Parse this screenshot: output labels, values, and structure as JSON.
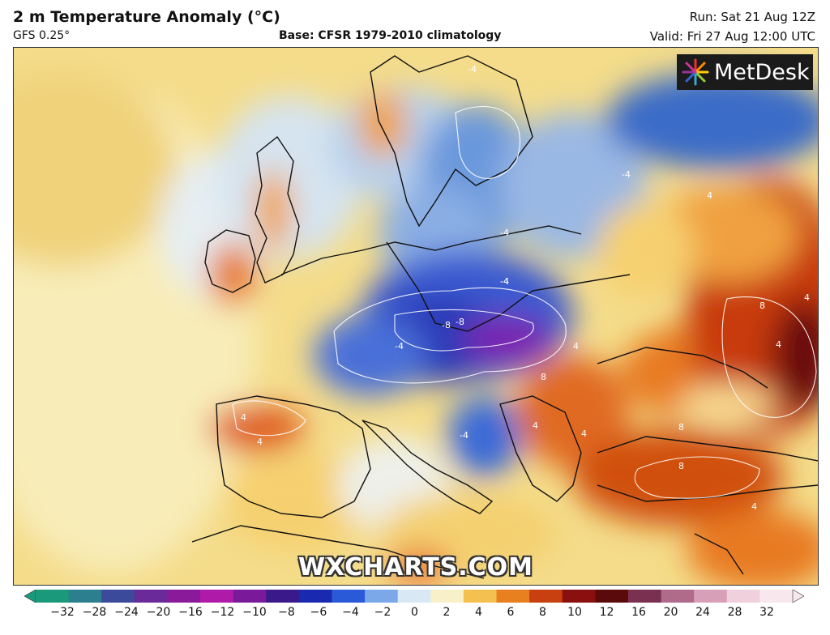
{
  "header": {
    "title": "2 m Temperature Anomaly (°C)",
    "model": "GFS 0.25°",
    "base": "Base: CFSR 1979-2010 climatology",
    "run": "Run: Sat 21 Aug 12Z",
    "valid": "Valid: Fri 27 Aug 12:00 UTC"
  },
  "logo": {
    "text": "MetDesk",
    "icon": "metdesk-starburst-icon"
  },
  "watermark": "WXCHARTS.COM",
  "contour_labels": {
    "cold": "-4",
    "cold_strong": "-8",
    "warm": "4",
    "warm_strong": "8"
  },
  "colorbar": {
    "ticks": [
      "−32",
      "−28",
      "−24",
      "−20",
      "−16",
      "−12",
      "−10",
      "−8",
      "−6",
      "−4",
      "−2",
      "0",
      "2",
      "4",
      "6",
      "8",
      "10",
      "12",
      "16",
      "20",
      "24",
      "28",
      "32"
    ],
    "colors": [
      "#1a9a7a",
      "#2b7f8f",
      "#3b4a9a",
      "#6a2a9a",
      "#8a1a9a",
      "#b01aa8",
      "#7a1a9a",
      "#3a1a8a",
      "#1a2ab0",
      "#2a5ad8",
      "#7aa8e8",
      "#d8e8f4",
      "#f8f0c8",
      "#f4c050",
      "#e88020",
      "#c84010",
      "#8a1010",
      "#5a0a0a",
      "#7a3050",
      "#b06a8a",
      "#d8a0b8",
      "#f0d0dc",
      "#f8e8ee"
    ]
  }
}
